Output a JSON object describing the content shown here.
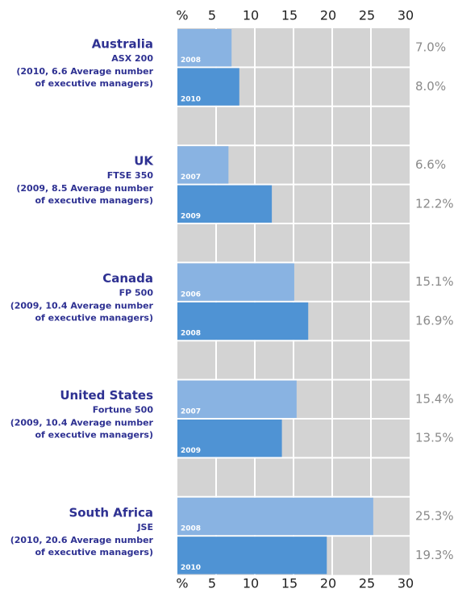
{
  "chart_data": {
    "type": "grouped-hbar",
    "xlim": [
      0,
      30
    ],
    "xticks": [
      {
        "value": 0,
        "label": "%"
      },
      5,
      10,
      15,
      20,
      25,
      30
    ],
    "grid": true,
    "colors": [
      "#89b3e2",
      "#4f93d4"
    ],
    "groups": [
      {
        "name": "Australia",
        "index": "ASX 200",
        "note": [
          "(2010, 6.6 Average number",
          "of executive managers)"
        ],
        "years": [
          "2008",
          "2010"
        ],
        "values": [
          7.0,
          8.0
        ],
        "value_labels": [
          "7.0%",
          "8.0%"
        ]
      },
      {
        "name": "UK",
        "index": "FTSE 350",
        "note": [
          "(2009, 8.5 Average number",
          "of executive managers)"
        ],
        "years": [
          "2007",
          "2009"
        ],
        "values": [
          6.6,
          12.2
        ],
        "value_labels": [
          "6.6%",
          "12.2%"
        ]
      },
      {
        "name": "Canada",
        "index": "FP 500",
        "note": [
          "(2009, 10.4 Average number",
          "of executive managers)"
        ],
        "years": [
          "2006",
          "2008"
        ],
        "values": [
          15.1,
          16.9
        ],
        "value_labels": [
          "15.1%",
          "16.9%"
        ]
      },
      {
        "name": "United States",
        "index": "Fortune 500",
        "note": [
          "(2009, 10.4 Average number",
          "of executive managers)"
        ],
        "years": [
          "2007",
          "2009"
        ],
        "values": [
          15.4,
          13.5
        ],
        "value_labels": [
          "15.4%",
          "13.5%"
        ]
      },
      {
        "name": "South Africa",
        "index": "JSE",
        "note": [
          "(2010, 20.6 Average number",
          "of executive managers)"
        ],
        "years": [
          "2008",
          "2010"
        ],
        "values": [
          25.3,
          19.3
        ],
        "value_labels": [
          "25.3%",
          "19.3%"
        ]
      }
    ]
  }
}
